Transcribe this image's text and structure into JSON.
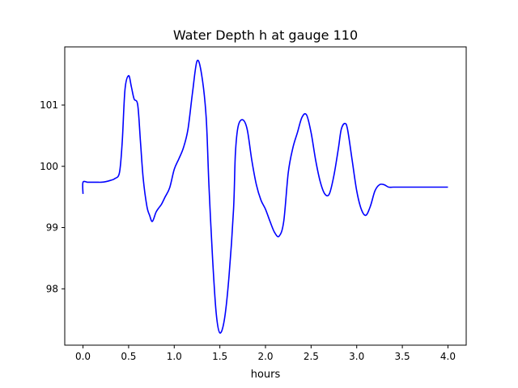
{
  "chart_data": {
    "type": "line",
    "title": "Water Depth h at gauge 110",
    "xlabel": "hours",
    "ylabel": "",
    "xlim": [
      -0.2,
      4.2
    ],
    "ylim": [
      97.08,
      101.95
    ],
    "x_ticks": [
      0.0,
      0.5,
      1.0,
      1.5,
      2.0,
      2.5,
      3.0,
      3.5,
      4.0
    ],
    "x_tick_labels": [
      "0.0",
      "0.5",
      "1.0",
      "1.5",
      "2.0",
      "2.5",
      "3.0",
      "3.5",
      "4.0"
    ],
    "y_ticks": [
      98,
      99,
      100,
      101
    ],
    "y_tick_labels": [
      "98",
      "99",
      "100",
      "101"
    ],
    "grid": false,
    "legend": "none",
    "series": [
      {
        "color": "#0000ff",
        "x": [
          0.0,
          0.0,
          0.05,
          0.1,
          0.15,
          0.2,
          0.25,
          0.3,
          0.35,
          0.4,
          0.43,
          0.46,
          0.5,
          0.53,
          0.56,
          0.6,
          0.63,
          0.66,
          0.7,
          0.73,
          0.76,
          0.8,
          0.83,
          0.86,
          0.9,
          0.95,
          1.0,
          1.05,
          1.1,
          1.15,
          1.2,
          1.25,
          1.3,
          1.35,
          1.38,
          1.42,
          1.46,
          1.5,
          1.55,
          1.6,
          1.65,
          1.67,
          1.7,
          1.75,
          1.8,
          1.85,
          1.9,
          1.95,
          2.0,
          2.05,
          2.1,
          2.15,
          2.2,
          2.25,
          2.3,
          2.35,
          2.4,
          2.45,
          2.5,
          2.55,
          2.6,
          2.65,
          2.7,
          2.75,
          2.8,
          2.83,
          2.87,
          2.9,
          2.95,
          3.0,
          3.05,
          3.1,
          3.15,
          3.2,
          3.25,
          3.3,
          3.35,
          3.4,
          3.45,
          3.5,
          3.55,
          3.6,
          3.65,
          3.7,
          3.75,
          3.8,
          3.85,
          3.9,
          3.95,
          4.0
        ],
        "y": [
          99.55,
          99.74,
          99.74,
          99.74,
          99.74,
          99.74,
          99.75,
          99.77,
          99.8,
          99.9,
          100.4,
          101.25,
          101.48,
          101.3,
          101.1,
          101.0,
          100.4,
          99.8,
          99.35,
          99.2,
          99.1,
          99.25,
          99.32,
          99.38,
          99.5,
          99.65,
          99.95,
          100.12,
          100.3,
          100.6,
          101.2,
          101.72,
          101.5,
          100.8,
          99.7,
          98.5,
          97.6,
          97.28,
          97.5,
          98.2,
          99.3,
          100.2,
          100.65,
          100.76,
          100.6,
          100.1,
          99.7,
          99.45,
          99.3,
          99.1,
          98.92,
          98.86,
          99.1,
          99.9,
          100.3,
          100.55,
          100.8,
          100.84,
          100.55,
          100.1,
          99.75,
          99.55,
          99.55,
          99.85,
          100.3,
          100.6,
          100.7,
          100.6,
          100.1,
          99.6,
          99.3,
          99.2,
          99.35,
          99.6,
          99.7,
          99.7,
          99.66,
          99.66,
          99.66,
          99.66,
          99.66,
          99.66,
          99.66,
          99.66,
          99.66,
          99.66,
          99.66,
          99.66,
          99.66,
          99.66
        ]
      }
    ]
  }
}
